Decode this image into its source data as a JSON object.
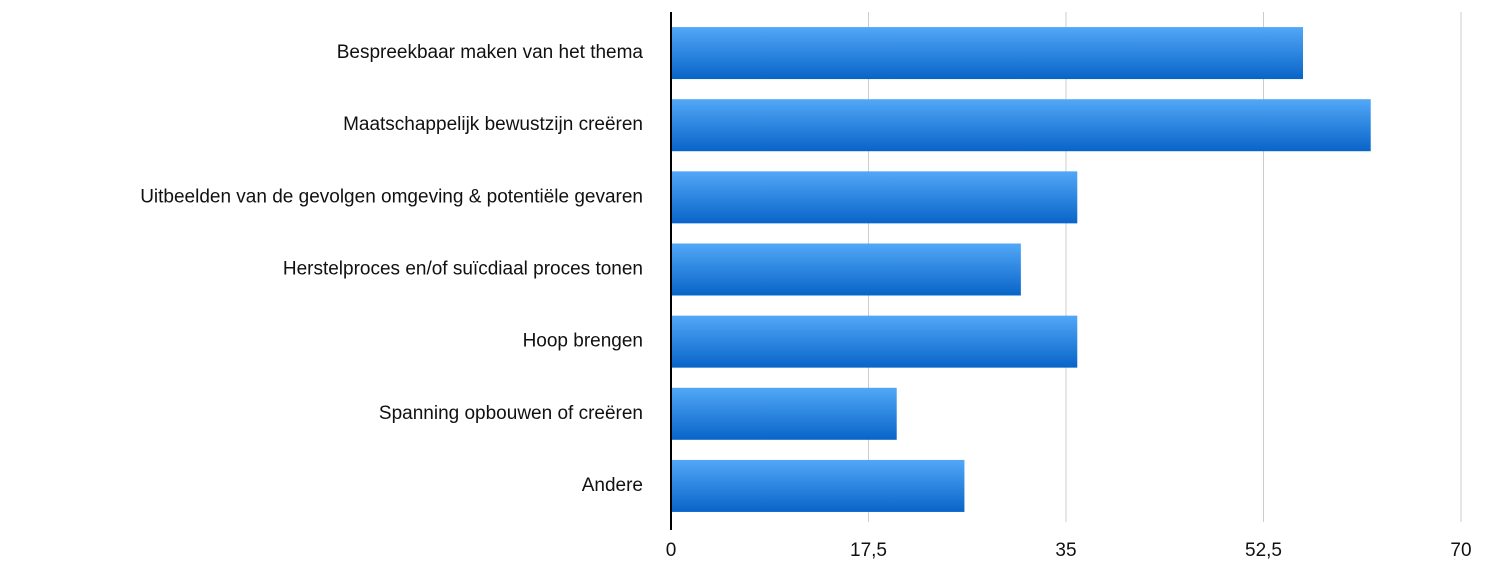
{
  "chart_data": {
    "type": "hbar",
    "categories": [
      "Bespreekbaar maken van het thema",
      "Maatschappelijk bewustzijn creëren",
      "Uitbeelden van de gevolgen omgeving & potentiële gevaren",
      "Herstelproces en/of suïcdiaal proces tonen",
      "Hoop brengen",
      "Spanning opbouwen of creëren",
      "Andere"
    ],
    "values": [
      56,
      62,
      36,
      31,
      36,
      20,
      26
    ],
    "color": "#2a85e6",
    "xlim": [
      0,
      70
    ],
    "xticks": [
      0,
      {
        "value": 17.5,
        "label": "17,5"
      },
      35,
      {
        "value": 52.5,
        "label": "52,5"
      },
      70
    ],
    "grid": true
  }
}
